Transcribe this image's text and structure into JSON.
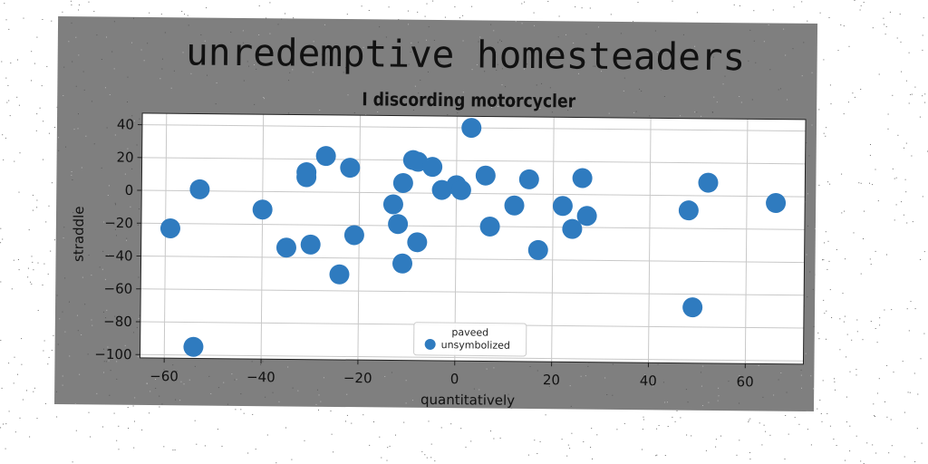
{
  "chart_data": {
    "type": "scatter",
    "title": "unredemptive homesteaders",
    "subtitle": "I discording motorcycler",
    "xlabel": "quantitatively",
    "ylabel": "straddle",
    "xlim": [
      -65,
      72
    ],
    "ylim": [
      -102,
      47
    ],
    "xticks": [
      -60,
      -40,
      -20,
      0,
      20,
      40,
      60
    ],
    "yticks": [
      -100,
      -80,
      -60,
      -40,
      -20,
      0,
      20,
      40
    ],
    "xtick_labels": [
      "−60",
      "−40",
      "−20",
      "0",
      "20",
      "40",
      "60"
    ],
    "ytick_labels": [
      "−100",
      "−80",
      "−60",
      "−40",
      "−20",
      "0",
      "20",
      "40"
    ],
    "grid": true,
    "legend": {
      "placement": "lower-center",
      "title": "paveed",
      "entries": [
        "unsymbolized"
      ]
    },
    "series": [
      {
        "name": "unsymbolized",
        "color": "#2f7bbf",
        "points": [
          [
            -59,
            -23
          ],
          [
            -53,
            1
          ],
          [
            -54,
            -95
          ],
          [
            -40,
            -11
          ],
          [
            -35,
            -34
          ],
          [
            -31,
            9
          ],
          [
            -31,
            12
          ],
          [
            -30,
            -32
          ],
          [
            -27,
            22
          ],
          [
            -22,
            15
          ],
          [
            -21,
            -26
          ],
          [
            -24,
            -50
          ],
          [
            -13,
            -7
          ],
          [
            -12,
            -19
          ],
          [
            -11,
            6
          ],
          [
            -11,
            -43
          ],
          [
            -9,
            20
          ],
          [
            -8,
            19
          ],
          [
            -8,
            -30
          ],
          [
            -5,
            16
          ],
          [
            -3,
            2
          ],
          [
            0,
            5
          ],
          [
            1,
            2
          ],
          [
            3,
            40
          ],
          [
            6,
            11
          ],
          [
            7,
            -20
          ],
          [
            12,
            -7
          ],
          [
            15,
            9
          ],
          [
            17,
            -34
          ],
          [
            22,
            -7
          ],
          [
            24,
            -21
          ],
          [
            26,
            10
          ],
          [
            27,
            -13
          ],
          [
            48,
            -9
          ],
          [
            49,
            -68
          ],
          [
            52,
            8
          ],
          [
            66,
            -4
          ]
        ]
      }
    ]
  }
}
